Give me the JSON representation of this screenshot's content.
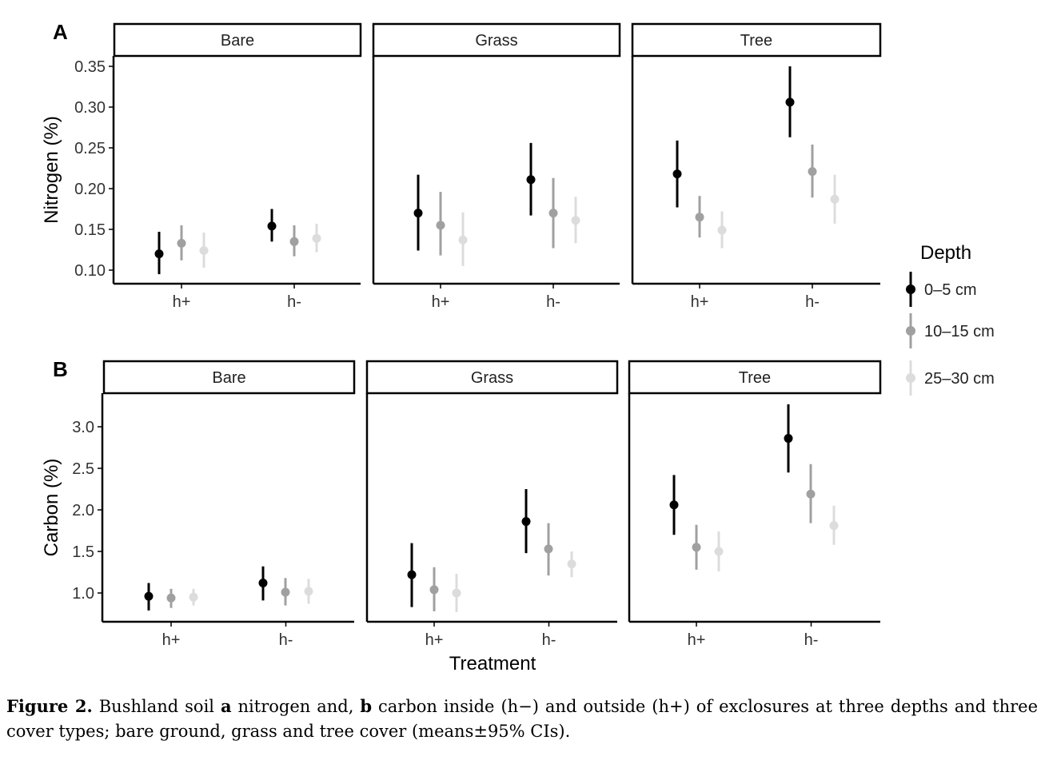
{
  "chart_data": [
    {
      "type": "scatter",
      "panel_label": "A",
      "ylabel": "Nitrogen (%)",
      "xlabel": "",
      "ylim": [
        0.095,
        0.36
      ],
      "yticks": [
        0.1,
        0.15,
        0.2,
        0.25,
        0.3,
        0.35
      ],
      "ytick_labels": [
        "0.10",
        "0.15",
        "0.20",
        "0.25",
        "0.30",
        "0.35"
      ],
      "facets": [
        "Bare",
        "Grass",
        "Tree"
      ],
      "categories": [
        "h+",
        "h-"
      ],
      "grid": false,
      "series": [
        {
          "name": "0–5 cm",
          "color": "#000000",
          "points": [
            {
              "facet": "Bare",
              "x": "h+",
              "y": 0.12,
              "lo": 0.095,
              "hi": 0.147
            },
            {
              "facet": "Bare",
              "x": "h-",
              "y": 0.154,
              "lo": 0.135,
              "hi": 0.175
            },
            {
              "facet": "Grass",
              "x": "h+",
              "y": 0.17,
              "lo": 0.124,
              "hi": 0.217
            },
            {
              "facet": "Grass",
              "x": "h-",
              "y": 0.211,
              "lo": 0.167,
              "hi": 0.256
            },
            {
              "facet": "Tree",
              "x": "h+",
              "y": 0.218,
              "lo": 0.177,
              "hi": 0.259
            },
            {
              "facet": "Tree",
              "x": "h-",
              "y": 0.306,
              "lo": 0.263,
              "hi": 0.35
            }
          ]
        },
        {
          "name": "10–15 cm",
          "color": "#a0a0a0",
          "points": [
            {
              "facet": "Bare",
              "x": "h+",
              "y": 0.133,
              "lo": 0.112,
              "hi": 0.155
            },
            {
              "facet": "Bare",
              "x": "h-",
              "y": 0.135,
              "lo": 0.117,
              "hi": 0.155
            },
            {
              "facet": "Grass",
              "x": "h+",
              "y": 0.155,
              "lo": 0.118,
              "hi": 0.196
            },
            {
              "facet": "Grass",
              "x": "h-",
              "y": 0.17,
              "lo": 0.127,
              "hi": 0.213
            },
            {
              "facet": "Tree",
              "x": "h+",
              "y": 0.165,
              "lo": 0.14,
              "hi": 0.191
            },
            {
              "facet": "Tree",
              "x": "h-",
              "y": 0.221,
              "lo": 0.189,
              "hi": 0.254
            }
          ]
        },
        {
          "name": "25–30 cm",
          "color": "#dcdcdc",
          "points": [
            {
              "facet": "Bare",
              "x": "h+",
              "y": 0.124,
              "lo": 0.103,
              "hi": 0.146
            },
            {
              "facet": "Bare",
              "x": "h-",
              "y": 0.139,
              "lo": 0.122,
              "hi": 0.157
            },
            {
              "facet": "Grass",
              "x": "h+",
              "y": 0.137,
              "lo": 0.105,
              "hi": 0.171
            },
            {
              "facet": "Grass",
              "x": "h-",
              "y": 0.161,
              "lo": 0.133,
              "hi": 0.19
            },
            {
              "facet": "Tree",
              "x": "h+",
              "y": 0.149,
              "lo": 0.127,
              "hi": 0.172
            },
            {
              "facet": "Tree",
              "x": "h-",
              "y": 0.187,
              "lo": 0.157,
              "hi": 0.217
            }
          ]
        }
      ]
    },
    {
      "type": "scatter",
      "panel_label": "B",
      "ylabel": "Carbon (%)",
      "xlabel": "Treatment",
      "ylim": [
        0.64,
        3.4
      ],
      "yticks": [
        1.0,
        1.5,
        2.0,
        2.5,
        3.0
      ],
      "ytick_labels": [
        "1.0",
        "1.5",
        "2.0",
        "2.5",
        "3.0"
      ],
      "facets": [
        "Bare",
        "Grass",
        "Tree"
      ],
      "categories": [
        "h+",
        "h-"
      ],
      "grid": false,
      "series": [
        {
          "name": "0–5 cm",
          "color": "#000000",
          "points": [
            {
              "facet": "Bare",
              "x": "h+",
              "y": 0.96,
              "lo": 0.79,
              "hi": 1.12
            },
            {
              "facet": "Bare",
              "x": "h-",
              "y": 1.12,
              "lo": 0.91,
              "hi": 1.32
            },
            {
              "facet": "Grass",
              "x": "h+",
              "y": 1.22,
              "lo": 0.83,
              "hi": 1.6
            },
            {
              "facet": "Grass",
              "x": "h-",
              "y": 1.86,
              "lo": 1.48,
              "hi": 2.25
            },
            {
              "facet": "Tree",
              "x": "h+",
              "y": 2.06,
              "lo": 1.7,
              "hi": 2.42
            },
            {
              "facet": "Tree",
              "x": "h-",
              "y": 2.86,
              "lo": 2.45,
              "hi": 3.27
            }
          ]
        },
        {
          "name": "10–15 cm",
          "color": "#a0a0a0",
          "points": [
            {
              "facet": "Bare",
              "x": "h+",
              "y": 0.94,
              "lo": 0.82,
              "hi": 1.05
            },
            {
              "facet": "Bare",
              "x": "h-",
              "y": 1.01,
              "lo": 0.85,
              "hi": 1.18
            },
            {
              "facet": "Grass",
              "x": "h+",
              "y": 1.04,
              "lo": 0.78,
              "hi": 1.31
            },
            {
              "facet": "Grass",
              "x": "h-",
              "y": 1.53,
              "lo": 1.21,
              "hi": 1.84
            },
            {
              "facet": "Tree",
              "x": "h+",
              "y": 1.55,
              "lo": 1.28,
              "hi": 1.82
            },
            {
              "facet": "Tree",
              "x": "h-",
              "y": 2.19,
              "lo": 1.84,
              "hi": 2.55
            }
          ]
        },
        {
          "name": "25–30 cm",
          "color": "#dcdcdc",
          "points": [
            {
              "facet": "Bare",
              "x": "h+",
              "y": 0.95,
              "lo": 0.85,
              "hi": 1.05
            },
            {
              "facet": "Bare",
              "x": "h-",
              "y": 1.02,
              "lo": 0.87,
              "hi": 1.17
            },
            {
              "facet": "Grass",
              "x": "h+",
              "y": 1.0,
              "lo": 0.77,
              "hi": 1.23
            },
            {
              "facet": "Grass",
              "x": "h-",
              "y": 1.35,
              "lo": 1.19,
              "hi": 1.5
            },
            {
              "facet": "Tree",
              "x": "h+",
              "y": 1.5,
              "lo": 1.26,
              "hi": 1.74
            },
            {
              "facet": "Tree",
              "x": "h-",
              "y": 1.81,
              "lo": 1.58,
              "hi": 2.05
            }
          ]
        }
      ]
    }
  ],
  "legend": {
    "title": "Depth",
    "position": "right",
    "items": [
      {
        "label": "0–5 cm",
        "color": "#000000"
      },
      {
        "label": "10–15 cm",
        "color": "#a0a0a0"
      },
      {
        "label": "25–30 cm",
        "color": "#dcdcdc"
      }
    ]
  },
  "caption": {
    "label": "Figure 2.",
    "parts": [
      {
        "text": " Bushland soil ",
        "bold": false
      },
      {
        "text": "a",
        "bold": true
      },
      {
        "text": " nitrogen and, ",
        "bold": false
      },
      {
        "text": "b",
        "bold": true
      },
      {
        "text": " carbon inside (h−) and outside (h+) of exclosures at three depths and three cover types; bare ground, grass and tree cover (means±95% CIs).",
        "bold": false
      }
    ]
  }
}
